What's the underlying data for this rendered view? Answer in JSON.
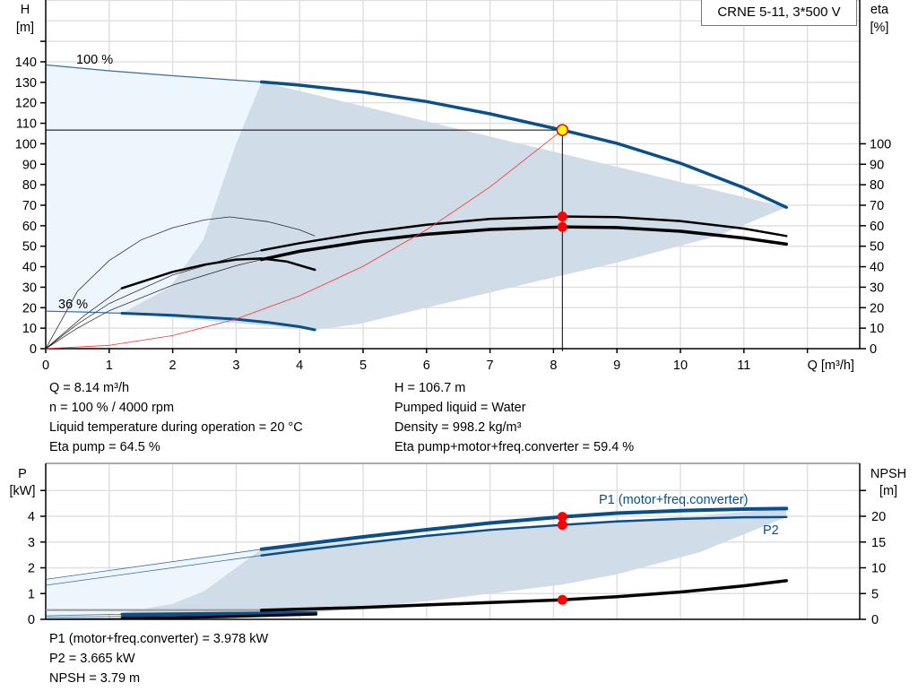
{
  "title": "CRNE 5-11, 3*500 V",
  "colors": {
    "curve_blue": "#0b4f8a",
    "area_dark": "#d0dce7",
    "area_light": "#edf5fd",
    "system_curve": "#ff3030",
    "duty_point": "#ffff00",
    "marker": "#ff0000",
    "grid": "#e0e0e0"
  },
  "info_top": {
    "left": [
      "Q = 8.14 m³/h",
      "n = 100 % / 4000 rpm",
      "Liquid temperature during operation = 20 °C",
      "Eta pump = 64.5 %"
    ],
    "right": [
      "H = 106.7 m",
      "Pumped liquid = Water",
      "Density = 998.2 kg/m³",
      "Eta pump+motor+freq.converter = 59.4 %"
    ]
  },
  "info_bottom": [
    "P1 (motor+freq.converter) = 3.978 kW",
    "P2 = 3.665 kW",
    "NPSH = 3.79 m"
  ],
  "chart_data": [
    {
      "type": "line",
      "xlabel": "Q [m³/h]",
      "ylabel": "H\n[m]",
      "ylabel_lines": [
        "H",
        "[m]"
      ],
      "y2label_lines": [
        "eta",
        "[%]"
      ],
      "xlim": [
        0,
        12.7
      ],
      "ylim": [
        0,
        170
      ],
      "y2lim": [
        0,
        170
      ],
      "xticks": [
        "0",
        "1",
        "2",
        "3",
        "4",
        "5",
        "6",
        "7",
        "8",
        "9",
        "10",
        "11"
      ],
      "yticks": [
        "0",
        "10",
        "20",
        "30",
        "40",
        "50",
        "60",
        "70",
        "80",
        "90",
        "100",
        "110",
        "120",
        "130",
        "140"
      ],
      "y2ticks": [
        "0",
        "10",
        "20",
        "30",
        "40",
        "50",
        "60",
        "70",
        "80",
        "90",
        "100"
      ],
      "grid": true,
      "annotations": [
        "100 %",
        "36 %"
      ],
      "series": [
        {
          "id": "h100",
          "axis": "H",
          "color": "#0b4f8a",
          "solid_from": 3.4,
          "points": [
            [
              0,
              138.5
            ],
            [
              1,
              135.6
            ],
            [
              2,
              133.2
            ],
            [
              3,
              131
            ],
            [
              3.4,
              130.2
            ],
            [
              4,
              128.6
            ],
            [
              5,
              125.2
            ],
            [
              6,
              120.6
            ],
            [
              7,
              114.6
            ],
            [
              8,
              107.6
            ],
            [
              8.14,
              106.7
            ],
            [
              9,
              100.2
            ],
            [
              10,
              90.5
            ],
            [
              11,
              78.5
            ],
            [
              11.67,
              69
            ]
          ]
        },
        {
          "id": "h36",
          "axis": "H",
          "color": "#0b4f8a",
          "solid_from": 1.2,
          "points": [
            [
              0,
              18.3
            ],
            [
              0.6,
              17.9
            ],
            [
              1.2,
              17.3
            ],
            [
              2,
              16.3
            ],
            [
              3,
              14.4
            ],
            [
              3.5,
              12.8
            ],
            [
              4,
              10.7
            ],
            [
              4.24,
              9.2
            ]
          ]
        },
        {
          "id": "eta_pump",
          "axis": "eta",
          "color": "#000",
          "solid_from": 3.4,
          "points": [
            [
              0,
              0
            ],
            [
              0.5,
              12
            ],
            [
              1,
              22
            ],
            [
              2,
              36
            ],
            [
              3,
              45
            ],
            [
              3.4,
              48
            ],
            [
              4,
              51.5
            ],
            [
              5,
              56.5
            ],
            [
              6,
              60.5
            ],
            [
              7,
              63.3
            ],
            [
              8.14,
              64.5
            ],
            [
              9,
              64.2
            ],
            [
              10,
              62.3
            ],
            [
              11,
              58.6
            ],
            [
              11.67,
              55
            ]
          ]
        },
        {
          "id": "eta_total",
          "axis": "eta",
          "color": "#000",
          "solid_from": 3.4,
          "points": [
            [
              0,
              0
            ],
            [
              0.5,
              10
            ],
            [
              1,
              18.5
            ],
            [
              2,
              31
            ],
            [
              3,
              40.5
            ],
            [
              3.4,
              43.5
            ],
            [
              4,
              47.5
            ],
            [
              5,
              52.3
            ],
            [
              6,
              55.8
            ],
            [
              7,
              58.2
            ],
            [
              8.14,
              59.4
            ],
            [
              9,
              59.1
            ],
            [
              10,
              57.3
            ],
            [
              11,
              54
            ],
            [
              11.67,
              51
            ]
          ]
        },
        {
          "id": "eta_pump_36",
          "axis": "eta",
          "color": "#000",
          "solid_from": 5,
          "points": [
            [
              0,
              0
            ],
            [
              0.5,
              28
            ],
            [
              1,
              43
            ],
            [
              1.5,
              53
            ],
            [
              2,
              59
            ],
            [
              2.5,
              62.8
            ],
            [
              2.9,
              64.3
            ],
            [
              3.5,
              62
            ],
            [
              4,
              58
            ],
            [
              4.24,
              55
            ]
          ]
        },
        {
          "id": "eta_total_36",
          "axis": "eta",
          "color": "#000",
          "solid_from": 1.2,
          "points": [
            [
              0,
              0
            ],
            [
              0.6,
              16
            ],
            [
              1.2,
              29.5
            ],
            [
              2,
              37.5
            ],
            [
              2.5,
              41
            ],
            [
              3,
              43.5
            ],
            [
              3.4,
              44
            ],
            [
              3.8,
              42.5
            ],
            [
              4.24,
              38.5
            ]
          ]
        },
        {
          "id": "system",
          "axis": "H",
          "color": "#ff3030",
          "points": [
            [
              0,
              0
            ],
            [
              1,
              1.6
            ],
            [
              2,
              6.4
            ],
            [
              3,
              14.5
            ],
            [
              4,
              25.8
            ],
            [
              5,
              40.2
            ],
            [
              6,
              58
            ],
            [
              7,
              78.9
            ],
            [
              8.14,
              106.7
            ]
          ]
        }
      ],
      "operating_area_dark": [
        [
          3.4,
          130.2
        ],
        [
          3.0,
          100
        ],
        [
          2.48,
          53
        ],
        [
          1.96,
          30
        ],
        [
          1.2,
          17.3
        ],
        [
          4.24,
          9.2
        ],
        [
          4.93,
          12
        ],
        [
          6,
          20
        ],
        [
          7.75,
          33
        ],
        [
          9,
          42
        ],
        [
          10.58,
          55
        ],
        [
          11.67,
          69
        ]
      ],
      "operating_area_light": [
        [
          0,
          138.5
        ],
        [
          3.4,
          130.2
        ],
        [
          3.0,
          100
        ],
        [
          2.48,
          53
        ],
        [
          1.96,
          30
        ],
        [
          1.2,
          17.3
        ],
        [
          0,
          18.3
        ]
      ],
      "duty_point": {
        "Q": 8.14,
        "H": 106.7,
        "eta_pump": 64.5,
        "eta_total": 59.4
      }
    },
    {
      "type": "line",
      "ylabel_lines": [
        "P",
        "[kW]"
      ],
      "y2label_lines": [
        "NPSH",
        "[m]"
      ],
      "xlim": [
        0,
        12.7
      ],
      "ylim": [
        0,
        5.8
      ],
      "y2lim": [
        0,
        29
      ],
      "yticks": [
        "0",
        "1",
        "2",
        "3",
        "4"
      ],
      "y2ticks": [
        "0",
        "5",
        "10",
        "15",
        "20"
      ],
      "grid": true,
      "series": [
        {
          "id": "p1",
          "name": "P1 (motor+freq.converter)",
          "axis": "P",
          "color": "#0b4f8a",
          "solid_from": 3.4,
          "points": [
            [
              0,
              1.55
            ],
            [
              3.4,
              2.72
            ],
            [
              4,
              2.9
            ],
            [
              5,
              3.2
            ],
            [
              6,
              3.48
            ],
            [
              7,
              3.74
            ],
            [
              8.14,
              3.978
            ],
            [
              9,
              4.12
            ],
            [
              10,
              4.22
            ],
            [
              11,
              4.28
            ],
            [
              11.67,
              4.3
            ]
          ]
        },
        {
          "id": "p2",
          "name": "P2",
          "axis": "P",
          "color": "#0b4f8a",
          "solid_from": 3.4,
          "points": [
            [
              0,
              1.32
            ],
            [
              3.4,
              2.48
            ],
            [
              4,
              2.67
            ],
            [
              5,
              2.96
            ],
            [
              6,
              3.24
            ],
            [
              7,
              3.47
            ],
            [
              8.14,
              3.665
            ],
            [
              9,
              3.8
            ],
            [
              10,
              3.9
            ],
            [
              11,
              3.96
            ],
            [
              11.67,
              3.97
            ]
          ]
        },
        {
          "id": "p1_36",
          "axis": "P",
          "color": "#0b4f8a",
          "solid_from": 1.2,
          "points": [
            [
              0,
              0.14
            ],
            [
              1.2,
              0.2
            ],
            [
              2,
              0.22
            ],
            [
              3,
              0.24
            ],
            [
              4.26,
              0.27
            ]
          ]
        },
        {
          "id": "p2_36",
          "axis": "P",
          "color": "#0b4f8a",
          "solid_from": 1.2,
          "points": [
            [
              0,
              0.08
            ],
            [
              1.2,
              0.12
            ],
            [
              2,
              0.15
            ],
            [
              3,
              0.18
            ],
            [
              4.26,
              0.21
            ]
          ]
        },
        {
          "id": "npsh_ref",
          "axis": "NPSH",
          "color": "#999",
          "points": [
            [
              0,
              1.8
            ],
            [
              3.4,
              1.8
            ]
          ]
        },
        {
          "id": "npsh",
          "axis": "NPSH",
          "color": "#000",
          "solid_from": 3.4,
          "points": [
            [
              3.4,
              1.75
            ],
            [
              5,
              2.3
            ],
            [
              6,
              2.8
            ],
            [
              7,
              3.25
            ],
            [
              8.14,
              3.79
            ],
            [
              9,
              4.4
            ],
            [
              10,
              5.3
            ],
            [
              11,
              6.5
            ],
            [
              11.67,
              7.5
            ]
          ]
        },
        {
          "id": "npsh_36",
          "axis": "NPSH",
          "color": "#000",
          "solid_from": 1.2,
          "points": [
            [
              0,
              0.1
            ],
            [
              1.2,
              0.2
            ],
            [
              2,
              0.3
            ],
            [
              3,
              0.55
            ],
            [
              4.26,
              1.0
            ]
          ]
        }
      ],
      "operating_area_dark": [
        [
          3.4,
          2.72
        ],
        [
          2.5,
          1.1
        ],
        [
          2,
          0.6
        ],
        [
          1.2,
          0.25
        ],
        [
          4.26,
          0.27
        ],
        [
          6,
          0.7
        ],
        [
          7,
          1.0
        ],
        [
          8.14,
          1.35
        ],
        [
          9,
          1.75
        ],
        [
          10.3,
          2.6
        ],
        [
          11.67,
          3.97
        ],
        [
          11.67,
          4.3
        ]
      ],
      "operating_area_light": [
        [
          0,
          1.55
        ],
        [
          3.4,
          2.72
        ],
        [
          2.5,
          1.1
        ],
        [
          2,
          0.6
        ],
        [
          1.2,
          0.25
        ],
        [
          0,
          0.1
        ]
      ],
      "duty_point": {
        "P1": 3.978,
        "P2": 3.665,
        "NPSH": 3.79
      }
    }
  ]
}
